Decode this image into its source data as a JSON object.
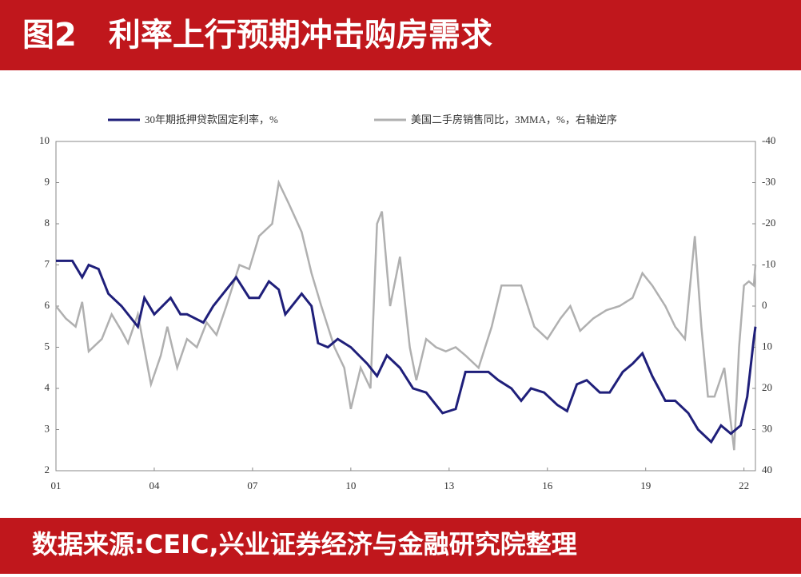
{
  "header": {
    "title": "图2　利率上行预期冲击购房需求"
  },
  "footer": {
    "source": "数据来源:CEIC,兴业证券经济与金融研究院整理"
  },
  "chart_data": {
    "type": "line",
    "xlim": [
      2001,
      2022.35
    ],
    "xticks": [
      {
        "value": 2001,
        "label": "01"
      },
      {
        "value": 2004,
        "label": "04"
      },
      {
        "value": 2007,
        "label": "07"
      },
      {
        "value": 2010,
        "label": "10"
      },
      {
        "value": 2013,
        "label": "13"
      },
      {
        "value": 2016,
        "label": "16"
      },
      {
        "value": 2019,
        "label": "19"
      },
      {
        "value": 2022,
        "label": "22"
      }
    ],
    "ylim": [
      2,
      10
    ],
    "yticks": [
      2,
      3,
      4,
      5,
      6,
      7,
      8,
      9,
      10
    ],
    "y2lim": [
      40,
      -40
    ],
    "y2ticks": [
      40,
      30,
      20,
      10,
      0,
      -10,
      -20,
      -30,
      -40
    ],
    "series": [
      {
        "name": "30年期抵押贷款固定利率，%",
        "color": "#1f1f7a",
        "axis": "y",
        "x": [
          2001.0,
          2001.5,
          2001.8,
          2002.0,
          2002.3,
          2002.6,
          2003.0,
          2003.5,
          2003.7,
          2004.0,
          2004.5,
          2004.8,
          2005.0,
          2005.5,
          2005.8,
          2006.0,
          2006.5,
          2006.9,
          2007.2,
          2007.5,
          2007.8,
          2008.0,
          2008.5,
          2008.8,
          2009.0,
          2009.3,
          2009.6,
          2010.0,
          2010.5,
          2010.8,
          2011.1,
          2011.5,
          2011.9,
          2012.3,
          2012.8,
          2013.2,
          2013.5,
          2013.8,
          2014.2,
          2014.5,
          2014.9,
          2015.2,
          2015.5,
          2015.9,
          2016.3,
          2016.6,
          2016.9,
          2017.2,
          2017.6,
          2017.9,
          2018.3,
          2018.6,
          2018.9,
          2019.2,
          2019.6,
          2019.9,
          2020.3,
          2020.6,
          2021.0,
          2021.3,
          2021.6,
          2021.9,
          2022.1,
          2022.3,
          2022.35
        ],
        "values": [
          7.1,
          7.1,
          6.7,
          7.0,
          6.9,
          6.3,
          6.0,
          5.5,
          6.2,
          5.8,
          6.2,
          5.8,
          5.8,
          5.6,
          6.0,
          6.2,
          6.7,
          6.2,
          6.2,
          6.6,
          6.4,
          5.8,
          6.3,
          6.0,
          5.1,
          5.0,
          5.2,
          5.0,
          4.6,
          4.3,
          4.8,
          4.5,
          4.0,
          3.9,
          3.4,
          3.5,
          4.4,
          4.4,
          4.4,
          4.2,
          4.0,
          3.7,
          4.0,
          3.9,
          3.6,
          3.45,
          4.1,
          4.2,
          3.9,
          3.9,
          4.4,
          4.6,
          4.85,
          4.3,
          3.7,
          3.7,
          3.4,
          3.0,
          2.7,
          3.1,
          2.9,
          3.1,
          3.8,
          5.2,
          5.5
        ]
      },
      {
        "name": "美国二手房销售同比，3MMA，%，右轴逆序",
        "color": "#b0b0b0",
        "axis": "y2",
        "x": [
          2001.0,
          2001.3,
          2001.6,
          2001.8,
          2002.0,
          2002.4,
          2002.7,
          2003.0,
          2003.2,
          2003.5,
          2003.9,
          2004.2,
          2004.4,
          2004.7,
          2005.0,
          2005.3,
          2005.6,
          2005.9,
          2006.2,
          2006.6,
          2006.9,
          2007.2,
          2007.6,
          2007.8,
          2008.1,
          2008.5,
          2008.8,
          2009.1,
          2009.5,
          2009.8,
          2010.0,
          2010.3,
          2010.6,
          2010.8,
          2010.95,
          2011.2,
          2011.5,
          2011.8,
          2012.0,
          2012.3,
          2012.6,
          2012.9,
          2013.2,
          2013.5,
          2013.9,
          2014.3,
          2014.6,
          2014.9,
          2015.2,
          2015.6,
          2016.0,
          2016.4,
          2016.7,
          2017.0,
          2017.4,
          2017.8,
          2018.2,
          2018.6,
          2018.9,
          2019.2,
          2019.6,
          2019.9,
          2020.2,
          2020.5,
          2020.7,
          2020.9,
          2021.1,
          2021.4,
          2021.7,
          2021.85,
          2022.0,
          2022.15,
          2022.3,
          2022.35
        ],
        "values": [
          0,
          3,
          5,
          -1,
          11,
          8,
          2,
          6,
          9,
          2,
          19,
          12,
          5,
          15,
          8,
          10,
          4,
          7,
          0,
          -10,
          -9,
          -17,
          -20,
          -30,
          -25,
          -18,
          -8,
          0,
          10,
          15,
          25,
          15,
          20,
          -20,
          -23,
          0,
          -12,
          10,
          18,
          8,
          10,
          11,
          10,
          12,
          15,
          5,
          -5,
          -5,
          -5,
          5,
          8,
          3,
          0,
          6,
          3,
          1,
          0,
          -2,
          -8,
          -5,
          0,
          5,
          8,
          -17,
          5,
          22,
          22,
          15,
          35,
          10,
          -5,
          -6,
          -5,
          -10
        ]
      }
    ]
  }
}
